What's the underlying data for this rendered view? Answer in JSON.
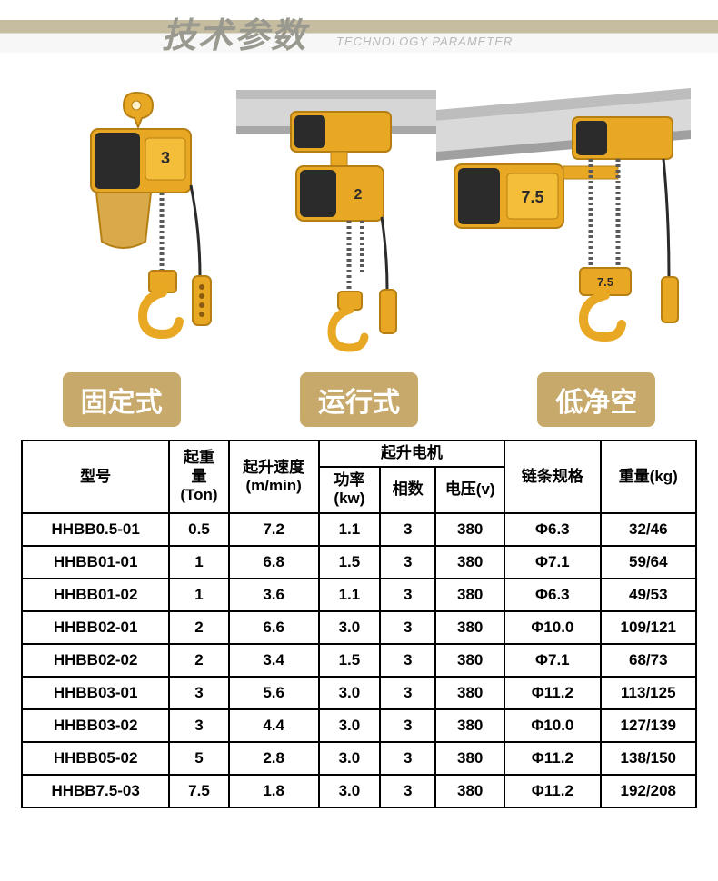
{
  "header": {
    "title_cn": "技术参数",
    "subtitle_en": "TECHNOLOGY PARAMETER"
  },
  "product_labels": [
    "固定式",
    "运行式",
    "低净空"
  ],
  "colors": {
    "badge_bg": "#c6a96b",
    "badge_text": "#ffffff",
    "header_text": "#9a998f",
    "hoist_body": "#e8a823",
    "hoist_dark": "#2b2b2b",
    "hoist_shadow": "#b57f14",
    "beam": "#a8a8a8",
    "chain": "#5a5a5a",
    "table_border": "#000000"
  },
  "table": {
    "header": {
      "model": "型号",
      "capacity": "起重\n量\n(Ton)",
      "speed": "起升速度\n(m/min)",
      "motor_group": "起升电机",
      "power": "功率\n(kw)",
      "phase": "相数",
      "voltage": "电压(v)",
      "chain": "链条规格",
      "weight": "重量(kg)"
    },
    "rows": [
      {
        "model": "HHBB0.5-01",
        "ton": "0.5",
        "speed": "7.2",
        "kw": "1.1",
        "phase": "3",
        "volt": "380",
        "chain": "Φ6.3",
        "weight": "32/46"
      },
      {
        "model": "HHBB01-01",
        "ton": "1",
        "speed": "6.8",
        "kw": "1.5",
        "phase": "3",
        "volt": "380",
        "chain": "Φ7.1",
        "weight": "59/64"
      },
      {
        "model": "HHBB01-02",
        "ton": "1",
        "speed": "3.6",
        "kw": "1.1",
        "phase": "3",
        "volt": "380",
        "chain": "Φ6.3",
        "weight": "49/53"
      },
      {
        "model": "HHBB02-01",
        "ton": "2",
        "speed": "6.6",
        "kw": "3.0",
        "phase": "3",
        "volt": "380",
        "chain": "Φ10.0",
        "weight": "109/121"
      },
      {
        "model": "HHBB02-02",
        "ton": "2",
        "speed": "3.4",
        "kw": "1.5",
        "phase": "3",
        "volt": "380",
        "chain": "Φ7.1",
        "weight": "68/73"
      },
      {
        "model": "HHBB03-01",
        "ton": "3",
        "speed": "5.6",
        "kw": "3.0",
        "phase": "3",
        "volt": "380",
        "chain": "Φ11.2",
        "weight": "113/125"
      },
      {
        "model": "HHBB03-02",
        "ton": "3",
        "speed": "4.4",
        "kw": "3.0",
        "phase": "3",
        "volt": "380",
        "chain": "Φ10.0",
        "weight": "127/139"
      },
      {
        "model": "HHBB05-02",
        "ton": "5",
        "speed": "2.8",
        "kw": "3.0",
        "phase": "3",
        "volt": "380",
        "chain": "Φ11.2",
        "weight": "138/150"
      },
      {
        "model": "HHBB7.5-03",
        "ton": "7.5",
        "speed": "1.8",
        "kw": "3.0",
        "phase": "3",
        "volt": "380",
        "chain": "Φ11.2",
        "weight": "192/208"
      }
    ]
  }
}
